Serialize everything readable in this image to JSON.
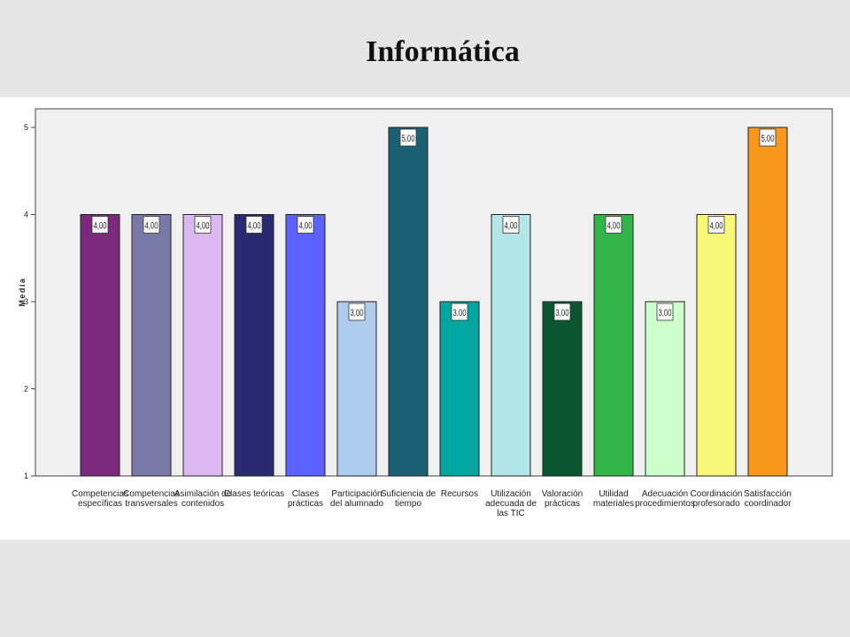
{
  "slide": {
    "title": "Informática"
  },
  "chart_data": {
    "type": "bar",
    "ylabel": "Media",
    "xlabel": "",
    "ylim": [
      1,
      5
    ],
    "yticks": [
      "1",
      "2",
      "3",
      "4",
      "5"
    ],
    "grid": false,
    "plot_background": "#f0f0f0",
    "categories": [
      [
        "Competencias",
        "específicas"
      ],
      [
        "Competencias",
        "transversales"
      ],
      [
        "Asimilación de",
        "contenidos"
      ],
      [
        "Clases teóricas"
      ],
      [
        "Clases",
        "prácticas"
      ],
      [
        "Participación",
        "del alumnado"
      ],
      [
        "Suficiencia de",
        "tiempo"
      ],
      [
        "Recursos"
      ],
      [
        "Utilización",
        "adecuada de",
        "las TIC"
      ],
      [
        "Valoración",
        "prácticas"
      ],
      [
        "Utilidad",
        "materiales"
      ],
      [
        "Adecuación",
        "procedimientos"
      ],
      [
        "Coordinación",
        "profesorado"
      ],
      [
        "Satisfacción",
        "coordinador"
      ]
    ],
    "values": [
      4,
      4,
      4,
      4,
      4,
      3,
      5,
      3,
      4,
      3,
      4,
      3,
      4,
      5
    ],
    "value_labels": [
      "4,00",
      "4,00",
      "4,00",
      "4,00",
      "4,00",
      "3,00",
      "5,00",
      "3,00",
      "4,00",
      "3,00",
      "4,00",
      "3,00",
      "4,00",
      "5,00"
    ],
    "colors": [
      "#7b2a7b",
      "#7a7aa8",
      "#dcb8f0",
      "#2a2a72",
      "#5c62ff",
      "#aecdee",
      "#1c6076",
      "#00a6a0",
      "#b4e6e8",
      "#0b5530",
      "#33b54a",
      "#ccffcc",
      "#f8f878",
      "#f7971e"
    ]
  }
}
